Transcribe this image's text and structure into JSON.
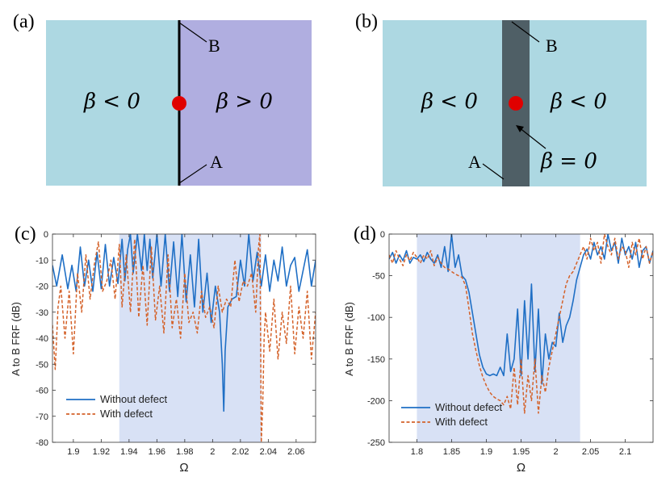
{
  "panels": {
    "a": {
      "label": "(a)",
      "point_b": "B",
      "point_a": "A",
      "left_region": "β < 0",
      "right_region": "β > 0",
      "left_color": "#add8e2",
      "right_color": "#b0aee0"
    },
    "b": {
      "label": "(b)",
      "point_b": "B",
      "point_a": "A",
      "left_region": "β < 0",
      "right_region": "β < 0",
      "strip_region": "β = 0",
      "bg_color": "#add8e2",
      "strip_color": "#4f5f66"
    },
    "c": {
      "label": "(c)"
    },
    "d": {
      "label": "(d)"
    }
  },
  "chart_data": [
    {
      "type": "line",
      "panel": "c",
      "xlabel": "Ω",
      "ylabel": "A to B FRF (dB)",
      "xlim": [
        1.885,
        2.074
      ],
      "ylim": [
        -80,
        0
      ],
      "xticks": [
        1.9,
        1.92,
        1.94,
        1.96,
        1.98,
        2,
        2.02,
        2.04,
        2.06
      ],
      "xtick_labels": [
        "1.9",
        "1.92",
        "1.94",
        "1.96",
        "1.98",
        "2",
        "2.02",
        "2.04",
        "2.06"
      ],
      "yticks": [
        0,
        -10,
        -20,
        -30,
        -40,
        -50,
        -60,
        -70,
        -80
      ],
      "ytick_labels": [
        "0",
        "-10",
        "-20",
        "-30",
        "-40",
        "-50",
        "-60",
        "-70",
        "-80"
      ],
      "shaded_band": [
        1.933,
        2.035
      ],
      "legend": [
        "Without defect",
        "With defect"
      ],
      "legend_position": "bottom-left",
      "series": [
        {
          "name": "Without defect",
          "style": "solid",
          "color": "#1f6fc5",
          "x": [
            1.885,
            1.888,
            1.892,
            1.896,
            1.899,
            1.902,
            1.905,
            1.908,
            1.911,
            1.914,
            1.917,
            1.92,
            1.923,
            1.926,
            1.929,
            1.932,
            1.935,
            1.937,
            1.939,
            1.941,
            1.943,
            1.946,
            1.949,
            1.951,
            1.953,
            1.955,
            1.957,
            1.96,
            1.963,
            1.966,
            1.969,
            1.972,
            1.975,
            1.978,
            1.981,
            1.984,
            1.987,
            1.99,
            1.993,
            1.996,
            1.999,
            2.002,
            2.005,
            2.007,
            2.008,
            2.009,
            2.011,
            2.014,
            2.017,
            2.02,
            2.023,
            2.026,
            2.029,
            2.032,
            2.035,
            2.038,
            2.041,
            2.044,
            2.047,
            2.05,
            2.053,
            2.056,
            2.059,
            2.062,
            2.065,
            2.068,
            2.071,
            2.074
          ],
          "y": [
            -12,
            -20,
            -8,
            -21,
            -12,
            -22,
            -5,
            -20,
            -10,
            -22,
            -7,
            -21,
            -4,
            -20,
            -9,
            -19,
            -2,
            -18,
            -6,
            0,
            -15,
            0,
            -14,
            0,
            -14,
            -2,
            -17,
            0,
            -20,
            0,
            -22,
            -3,
            -24,
            0,
            -26,
            -8,
            -28,
            -2,
            -30,
            -15,
            -34,
            -20,
            -30,
            -50,
            -68,
            -45,
            -28,
            -25,
            -24,
            -10,
            -20,
            0,
            -18,
            -7,
            -20,
            -8,
            -22,
            -10,
            -18,
            -5,
            -20,
            -12,
            -9,
            -22,
            -14,
            -6,
            -20,
            -10
          ]
        },
        {
          "name": "With defect",
          "style": "dashed",
          "color": "#d4622a",
          "x": [
            1.885,
            1.887,
            1.889,
            1.891,
            1.894,
            1.897,
            1.9,
            1.903,
            1.906,
            1.909,
            1.912,
            1.915,
            1.918,
            1.921,
            1.924,
            1.927,
            1.93,
            1.933,
            1.935,
            1.938,
            1.941,
            1.944,
            1.947,
            1.95,
            1.953,
            1.956,
            1.959,
            1.962,
            1.965,
            1.968,
            1.971,
            1.974,
            1.977,
            1.98,
            1.983,
            1.986,
            1.989,
            1.992,
            1.995,
            1.998,
            2.001,
            2.004,
            2.007,
            2.01,
            2.013,
            2.016,
            2.019,
            2.022,
            2.025,
            2.028,
            2.031,
            2.033,
            2.034,
            2.035,
            2.036,
            2.037,
            2.038,
            2.041,
            2.044,
            2.047,
            2.05,
            2.053,
            2.056,
            2.059,
            2.062,
            2.065,
            2.068,
            2.071,
            2.074
          ],
          "y": [
            -35,
            -52,
            -28,
            -20,
            -40,
            -22,
            -46,
            -15,
            -30,
            -8,
            -25,
            -12,
            -3,
            -22,
            -18,
            -10,
            -25,
            -4,
            -28,
            -8,
            -30,
            -2,
            -32,
            -12,
            -35,
            -5,
            -33,
            -20,
            -38,
            -8,
            -36,
            -25,
            -40,
            -15,
            -34,
            -30,
            -38,
            -22,
            -32,
            -28,
            -36,
            -20,
            -30,
            -25,
            -28,
            -10,
            -26,
            -18,
            -20,
            -15,
            -30,
            -5,
            0,
            -80,
            -65,
            -40,
            -30,
            -45,
            -25,
            -48,
            -30,
            -42,
            -20,
            -46,
            -28,
            -40,
            -22,
            -48,
            -30
          ]
        }
      ]
    },
    {
      "type": "line",
      "panel": "d",
      "xlabel": "Ω",
      "ylabel": "A to B FRF (dB)",
      "xlim": [
        1.76,
        2.14
      ],
      "ylim": [
        -250,
        0
      ],
      "xticks": [
        1.8,
        1.85,
        1.9,
        1.95,
        2,
        2.05,
        2.1
      ],
      "xtick_labels": [
        "1.8",
        "1.85",
        "1.9",
        "1.95",
        "2",
        "2.05",
        "2.1"
      ],
      "yticks": [
        0,
        -50,
        -100,
        -150,
        -200,
        -250
      ],
      "ytick_labels": [
        "0",
        "-50",
        "-100",
        "-150",
        "-200",
        "-250"
      ],
      "shaded_band": [
        1.8,
        2.035
      ],
      "legend": [
        "Without defect",
        "With defect"
      ],
      "legend_position": "bottom-left",
      "series": [
        {
          "name": "Without defect",
          "style": "solid",
          "color": "#1f6fc5",
          "x": [
            1.76,
            1.765,
            1.77,
            1.775,
            1.78,
            1.785,
            1.79,
            1.795,
            1.8,
            1.805,
            1.81,
            1.815,
            1.82,
            1.825,
            1.83,
            1.835,
            1.84,
            1.845,
            1.85,
            1.855,
            1.86,
            1.865,
            1.87,
            1.875,
            1.88,
            1.885,
            1.89,
            1.895,
            1.9,
            1.905,
            1.91,
            1.915,
            1.92,
            1.925,
            1.93,
            1.935,
            1.94,
            1.945,
            1.95,
            1.955,
            1.96,
            1.965,
            1.97,
            1.975,
            1.98,
            1.985,
            1.99,
            1.995,
            2.0,
            2.005,
            2.01,
            2.015,
            2.02,
            2.025,
            2.03,
            2.035,
            2.04,
            2.045,
            2.05,
            2.055,
            2.06,
            2.065,
            2.07,
            2.075,
            2.08,
            2.085,
            2.09,
            2.095,
            2.1,
            2.105,
            2.11,
            2.115,
            2.12,
            2.125,
            2.13,
            2.135,
            2.14
          ],
          "y": [
            -30,
            -22,
            -35,
            -25,
            -32,
            -20,
            -35,
            -28,
            -30,
            -25,
            -33,
            -22,
            -30,
            -35,
            -25,
            -40,
            -15,
            -45,
            0,
            -40,
            -25,
            -50,
            -55,
            -70,
            -95,
            -120,
            -145,
            -160,
            -168,
            -170,
            -168,
            -170,
            -160,
            -170,
            -120,
            -165,
            -150,
            -90,
            -170,
            -80,
            -150,
            -60,
            -165,
            -90,
            -180,
            -120,
            -150,
            -130,
            -135,
            -95,
            -130,
            -110,
            -100,
            -80,
            -55,
            -40,
            -25,
            -18,
            -30,
            -10,
            -25,
            -15,
            -30,
            0,
            -20,
            -10,
            -35,
            -5,
            -25,
            -15,
            -30,
            -10,
            -40,
            -20,
            -15,
            -35,
            -20
          ]
        },
        {
          "name": "With defect",
          "style": "dashed",
          "color": "#d4622a",
          "x": [
            1.76,
            1.765,
            1.77,
            1.775,
            1.78,
            1.785,
            1.79,
            1.795,
            1.8,
            1.805,
            1.81,
            1.815,
            1.82,
            1.825,
            1.83,
            1.835,
            1.84,
            1.845,
            1.85,
            1.855,
            1.86,
            1.865,
            1.87,
            1.875,
            1.88,
            1.885,
            1.89,
            1.895,
            1.9,
            1.905,
            1.91,
            1.915,
            1.92,
            1.925,
            1.93,
            1.935,
            1.94,
            1.945,
            1.95,
            1.955,
            1.96,
            1.965,
            1.97,
            1.975,
            1.98,
            1.985,
            1.99,
            1.995,
            2.0,
            2.005,
            2.01,
            2.015,
            2.02,
            2.025,
            2.03,
            2.035,
            2.04,
            2.045,
            2.05,
            2.055,
            2.06,
            2.065,
            2.07,
            2.075,
            2.08,
            2.085,
            2.09,
            2.095,
            2.1,
            2.105,
            2.11,
            2.115,
            2.12,
            2.125,
            2.13,
            2.135,
            2.14
          ],
          "y": [
            -25,
            -35,
            -20,
            -30,
            -38,
            -25,
            -32,
            -22,
            -28,
            -35,
            -25,
            -30,
            -20,
            -38,
            -28,
            -35,
            -40,
            -42,
            -45,
            -48,
            -50,
            -52,
            -62,
            -90,
            -120,
            -140,
            -158,
            -172,
            -182,
            -190,
            -195,
            -198,
            -200,
            -205,
            -195,
            -210,
            -160,
            -205,
            -150,
            -215,
            -170,
            -200,
            -150,
            -215,
            -170,
            -190,
            -160,
            -140,
            -120,
            -100,
            -80,
            -60,
            -50,
            -45,
            -35,
            -25,
            -15,
            -30,
            -5,
            -20,
            -10,
            -35,
            0,
            -15,
            -25,
            -5,
            -30,
            -15,
            -20,
            -40,
            -10,
            -25,
            -5,
            -30,
            -15,
            -35,
            -20
          ]
        }
      ]
    }
  ]
}
